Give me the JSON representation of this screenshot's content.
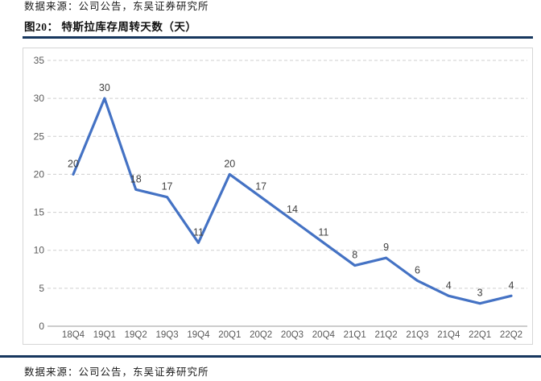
{
  "header": {
    "source_top": "数据来源：公司公告，东吴证券研究所",
    "figure_title": "图20：  特斯拉库存周转天数（天）"
  },
  "footer": {
    "source_bottom": "数据来源：公司公告，东吴证券研究所"
  },
  "chart_data": {
    "type": "line",
    "title": "特斯拉库存周转天数（天）",
    "categories": [
      "18Q4",
      "19Q1",
      "19Q2",
      "19Q3",
      "19Q4",
      "20Q1",
      "20Q2",
      "20Q3",
      "20Q4",
      "21Q1",
      "21Q2",
      "21Q3",
      "21Q4",
      "22Q1",
      "22Q2"
    ],
    "values": [
      20,
      30,
      18,
      17,
      11,
      20,
      17,
      14,
      11,
      8,
      9,
      6,
      4,
      3,
      4
    ],
    "xlabel": "",
    "ylabel": "",
    "ylim": [
      0,
      35
    ],
    "yticks": [
      0,
      5,
      10,
      15,
      20,
      25,
      30,
      35
    ],
    "grid": "dashed-horizontal",
    "legend": "none",
    "line_color": "#4472C4",
    "grid_color": "#cfcfcf",
    "axis_text_color": "#595959",
    "data_label_color": "#404040"
  }
}
